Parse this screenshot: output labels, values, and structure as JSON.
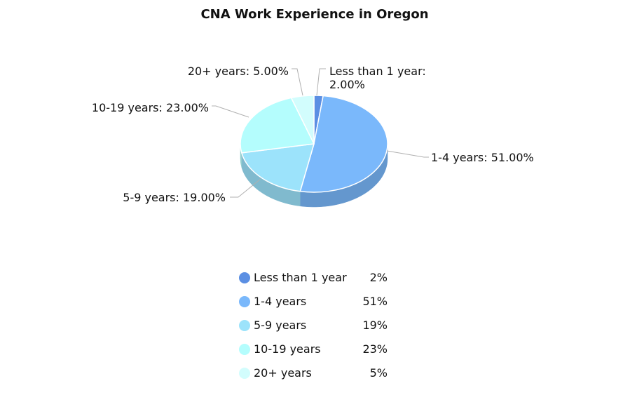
{
  "chart_data": {
    "type": "pie",
    "title": "CNA Work Experience in Oregon",
    "slices": [
      {
        "label": "Less than 1 year",
        "value": 2,
        "slice_label": "Less than 1 year: 2.00%",
        "legend_value": "2%",
        "color": "#5b8fe3"
      },
      {
        "label": "1-4 years",
        "value": 51,
        "slice_label": "1-4 years: 51.00%",
        "legend_value": "51%",
        "color": "#7ab8fb"
      },
      {
        "label": "5-9 years",
        "value": 19,
        "slice_label": "5-9 years: 19.00%",
        "legend_value": "19%",
        "color": "#9ce3fb"
      },
      {
        "label": "10-19 years",
        "value": 23,
        "slice_label": "10-19 years: 23.00%",
        "legend_value": "23%",
        "color": "#b4fdfd"
      },
      {
        "label": "20+ years",
        "value": 5,
        "slice_label": "20+ years: 5.00%",
        "legend_value": "5%",
        "color": "#d2fdfd"
      }
    ],
    "legend_position": "bottom"
  }
}
